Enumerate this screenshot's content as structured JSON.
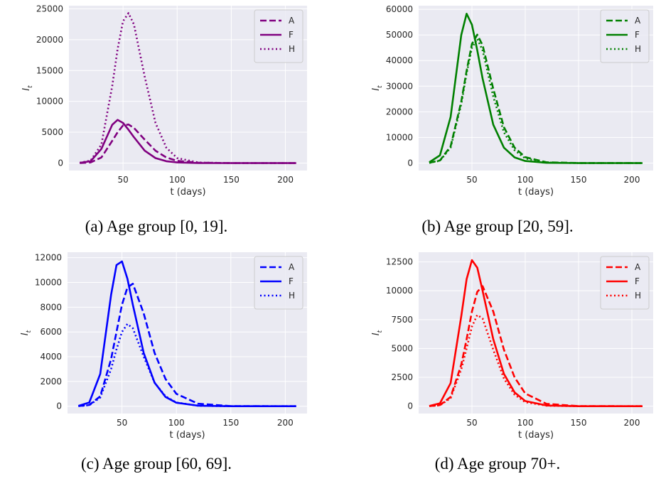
{
  "chart_data": [
    {
      "type": "line",
      "caption": "(a) Age group [0, 19].",
      "xlabel": "t (days)",
      "ylabel": "I",
      "ylabel_subscript": "t",
      "x": [
        10,
        20,
        30,
        40,
        45,
        50,
        55,
        60,
        70,
        80,
        90,
        100,
        120,
        150,
        210
      ],
      "xlim": [
        0,
        220
      ],
      "xticks": [
        50,
        100,
        150,
        200
      ],
      "ylim": [
        -1215,
        25515
      ],
      "yticks": [
        0,
        5000,
        10000,
        15000,
        20000,
        25000
      ],
      "grid": true,
      "legend": "upper right",
      "series": [
        {
          "name": "A",
          "color": "#800080",
          "dash": "dashed",
          "values": [
            10,
            100,
            900,
            3600,
            5000,
            6100,
            6250,
            5700,
            3800,
            2000,
            900,
            350,
            50,
            0,
            0
          ]
        },
        {
          "name": "F",
          "color": "#800080",
          "dash": "solid",
          "values": [
            30,
            300,
            2300,
            6200,
            7000,
            6500,
            5400,
            4200,
            2000,
            800,
            300,
            100,
            10,
            0,
            0
          ]
        },
        {
          "name": "H",
          "color": "#800080",
          "dash": "dotted",
          "values": [
            40,
            400,
            3000,
            12500,
            18500,
            23000,
            24300,
            22500,
            14000,
            6500,
            2500,
            800,
            80,
            0,
            0
          ]
        }
      ]
    },
    {
      "type": "line",
      "caption": "(b) Age group [20, 59].",
      "xlabel": "t (days)",
      "ylabel": "I",
      "ylabel_subscript": "t",
      "x": [
        10,
        20,
        30,
        40,
        45,
        50,
        55,
        60,
        70,
        80,
        90,
        100,
        120,
        150,
        210
      ],
      "xlim": [
        0,
        220
      ],
      "xticks": [
        50,
        100,
        150,
        200
      ],
      "ylim": [
        -2925,
        61425
      ],
      "yticks": [
        0,
        10000,
        20000,
        30000,
        40000,
        50000,
        60000
      ],
      "grid": true,
      "legend": "upper right",
      "series": [
        {
          "name": "A",
          "color": "#008000",
          "dash": "dashed",
          "values": [
            100,
            1000,
            6500,
            24000,
            36000,
            46500,
            50100,
            46000,
            29000,
            14000,
            6000,
            2300,
            300,
            10,
            0
          ]
        },
        {
          "name": "F",
          "color": "#008000",
          "dash": "solid",
          "values": [
            300,
            3000,
            18000,
            50000,
            58300,
            54000,
            44000,
            33000,
            15000,
            6000,
            2200,
            800,
            100,
            0,
            0
          ]
        },
        {
          "name": "H",
          "color": "#008000",
          "dash": "dotted",
          "values": [
            80,
            900,
            6000,
            23000,
            35000,
            45000,
            48500,
            44000,
            26000,
            12000,
            5000,
            1800,
            200,
            0,
            0
          ]
        }
      ]
    },
    {
      "type": "line",
      "caption": "(c) Age group [60, 69].",
      "xlabel": "t (days)",
      "ylabel": "I",
      "ylabel_subscript": "t",
      "x": [
        10,
        20,
        30,
        40,
        45,
        50,
        55,
        60,
        70,
        80,
        90,
        100,
        120,
        150,
        210
      ],
      "xlim": [
        0,
        220
      ],
      "xticks": [
        50,
        100,
        150,
        200
      ],
      "ylim": [
        -590,
        12440
      ],
      "yticks": [
        0,
        2000,
        4000,
        6000,
        8000,
        10000,
        12000
      ],
      "grid": true,
      "legend": "upper right",
      "series": [
        {
          "name": "A",
          "color": "#0000ff",
          "dash": "dashed",
          "values": [
            10,
            100,
            800,
            3800,
            6000,
            8200,
            9600,
            9900,
            7500,
            4300,
            2200,
            1000,
            200,
            10,
            0
          ]
        },
        {
          "name": "F",
          "color": "#0000ff",
          "dash": "solid",
          "values": [
            30,
            300,
            2600,
            9000,
            11400,
            11700,
            10300,
            8200,
            4300,
            1900,
            750,
            280,
            40,
            0,
            0
          ]
        },
        {
          "name": "H",
          "color": "#0000ff",
          "dash": "dotted",
          "values": [
            10,
            80,
            700,
            3000,
            4600,
            6000,
            6650,
            6300,
            4000,
            1900,
            800,
            300,
            40,
            0,
            0
          ]
        }
      ]
    },
    {
      "type": "line",
      "caption": "(d) Age group 70+.",
      "xlabel": "t (days)",
      "ylabel": "I",
      "ylabel_subscript": "t",
      "x": [
        10,
        20,
        30,
        40,
        45,
        50,
        55,
        60,
        70,
        80,
        90,
        100,
        120,
        150,
        210
      ],
      "xlim": [
        0,
        220
      ],
      "xticks": [
        50,
        100,
        150,
        200
      ],
      "ylim": [
        -635,
        13335
      ],
      "yticks": [
        0,
        2500,
        5000,
        7500,
        10000,
        12500
      ],
      "grid": true,
      "legend": "upper right",
      "series": [
        {
          "name": "A",
          "color": "#ff0000",
          "dash": "dashed",
          "values": [
            10,
            100,
            800,
            3600,
            5800,
            8200,
            9900,
            10400,
            8200,
            4900,
            2500,
            1100,
            200,
            10,
            0
          ]
        },
        {
          "name": "F",
          "color": "#ff0000",
          "dash": "solid",
          "values": [
            20,
            250,
            2000,
            7800,
            11000,
            12650,
            12000,
            10000,
            5800,
            2800,
            1200,
            450,
            60,
            0,
            0
          ]
        },
        {
          "name": "H",
          "color": "#ff0000",
          "dash": "dotted",
          "values": [
            10,
            80,
            700,
            3200,
            5000,
            6900,
            7900,
            7600,
            4900,
            2400,
            1000,
            350,
            50,
            0,
            0
          ]
        }
      ]
    }
  ]
}
